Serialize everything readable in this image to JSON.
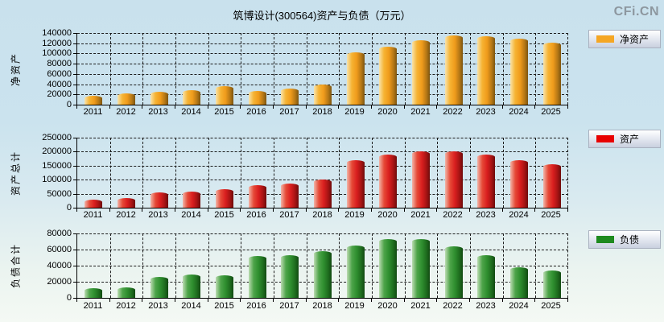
{
  "title": "筑博设计(300564)资产与负债（万元）",
  "watermark": "CFi.CN",
  "chart_data": [
    {
      "type": "bar",
      "name": "净资产",
      "axis_label": "净资产",
      "legend": "净资产",
      "color": "#F5A623",
      "categories": [
        "2011",
        "2012",
        "2013",
        "2014",
        "2015",
        "2016",
        "2017",
        "2018",
        "2019",
        "2020",
        "2021",
        "2022",
        "2023",
        "2024",
        "2025"
      ],
      "values": [
        17000,
        22000,
        25500,
        28000,
        36000,
        26500,
        31000,
        40000,
        102000,
        113000,
        125500,
        135500,
        134000,
        129500,
        120500
      ],
      "ylim": [
        0,
        140000
      ],
      "ystep": 20000,
      "grid": true,
      "legend_position": "right-top"
    },
    {
      "type": "bar",
      "name": "资产",
      "axis_label": "资产总计",
      "legend": "资产",
      "color": "#E80000",
      "categories": [
        "2011",
        "2012",
        "2013",
        "2014",
        "2015",
        "2016",
        "2017",
        "2018",
        "2019",
        "2020",
        "2021",
        "2022",
        "2023",
        "2024",
        "2025"
      ],
      "values": [
        30000,
        35000,
        54000,
        57500,
        66000,
        80000,
        86000,
        100000,
        169000,
        189000,
        201000,
        201000,
        190000,
        169000,
        156000
      ],
      "ylim": [
        0,
        250000
      ],
      "ystep": 50000,
      "grid": true,
      "legend_position": "right-top"
    },
    {
      "type": "bar",
      "name": "负债",
      "axis_label": "负债合计",
      "legend": "负债",
      "color": "#1E8A1E",
      "categories": [
        "2011",
        "2012",
        "2013",
        "2014",
        "2015",
        "2016",
        "2017",
        "2018",
        "2019",
        "2020",
        "2021",
        "2022",
        "2023",
        "2024",
        "2025"
      ],
      "values": [
        11500,
        12500,
        26000,
        29000,
        28000,
        51500,
        53000,
        57500,
        64500,
        73000,
        72500,
        63500,
        53000,
        38000,
        33500
      ],
      "ylim": [
        0,
        80000
      ],
      "ystep": 20000,
      "grid": true,
      "legend_position": "right-top"
    }
  ]
}
